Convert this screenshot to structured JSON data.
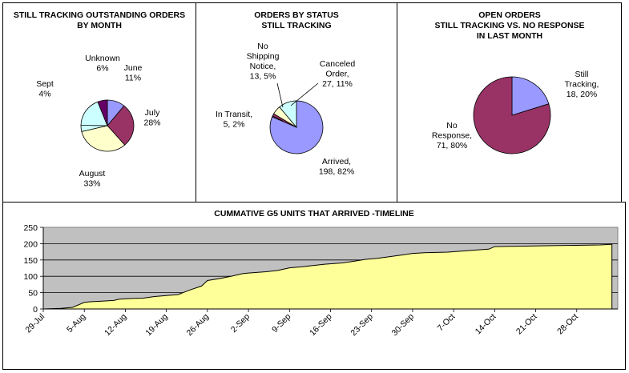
{
  "chart_data": [
    {
      "type": "pie",
      "title": "STILL TRACKING OUTSTANDING ORDERS BY MONTH",
      "title_lines": [
        "STILL TRACKING OUTSTANDING ORDERS",
        "BY MONTH"
      ],
      "slices": [
        {
          "name": "June",
          "value": 11,
          "label": [
            "June",
            "11%"
          ],
          "color": "#9999ff"
        },
        {
          "name": "July",
          "value": 28,
          "label": [
            "July",
            "28%"
          ],
          "color": "#993366"
        },
        {
          "name": "August",
          "value": 33,
          "label": [
            "August",
            "33%"
          ],
          "color": "#ffffcc"
        },
        {
          "name": "Sept",
          "value": 4,
          "label": [
            "Sept",
            "4%"
          ],
          "color": "#ccffff"
        },
        {
          "name": "Sept",
          "value": 19,
          "label": null,
          "color": "#ccffff"
        },
        {
          "name": "Unknown",
          "value": 6,
          "label": [
            "Unknown",
            "6%"
          ],
          "color": "#660066"
        }
      ]
    },
    {
      "type": "pie",
      "title": "ORDERS BY STATUS STILL TRACKING",
      "title_lines": [
        "ORDERS BY STATUS",
        "STILL TRACKING"
      ],
      "slices": [
        {
          "name": "Arrived",
          "value": 198,
          "label": [
            "Arrived,",
            "198, 82%"
          ],
          "color": "#9999ff"
        },
        {
          "name": "In Transit",
          "value": 5,
          "label": [
            "In Transit,",
            "5, 2%"
          ],
          "color": "#993366"
        },
        {
          "name": "No Shipping Notice",
          "value": 13,
          "label": [
            "No",
            "Shipping",
            "Notice,",
            "13, 5%"
          ],
          "color": "#ffffcc"
        },
        {
          "name": "Canceled Order",
          "value": 27,
          "label": [
            "Canceled",
            "Order,",
            "27, 11%"
          ],
          "color": "#ccffff"
        }
      ]
    },
    {
      "type": "pie",
      "title": "OPEN ORDERS STILL TRACKING VS. NO RESPONSE IN LAST MONTH",
      "title_lines": [
        "OPEN ORDERS",
        "STILL TRACKING VS. NO RESPONSE",
        "IN LAST MONTH"
      ],
      "slices": [
        {
          "name": "Still Tracking",
          "value": 18,
          "label": [
            "Still",
            "Tracking,",
            "18, 20%"
          ],
          "color": "#9999ff"
        },
        {
          "name": "No Response",
          "value": 71,
          "label": [
            "No",
            "Response,",
            "71, 80%"
          ],
          "color": "#993366"
        }
      ]
    },
    {
      "type": "area",
      "title": "CUMMATIVE G5 UNITS THAT ARRIVED -TIMELINE",
      "ylim": [
        0,
        250
      ],
      "yticks": [
        0,
        50,
        100,
        150,
        200,
        250
      ],
      "xlim": [
        0,
        98
      ],
      "xticks": [
        {
          "day": 0,
          "label": "29-Jul"
        },
        {
          "day": 7,
          "label": "5-Aug"
        },
        {
          "day": 14,
          "label": "12-Aug"
        },
        {
          "day": 21,
          "label": "19-Aug"
        },
        {
          "day": 28,
          "label": "26-Aug"
        },
        {
          "day": 35,
          "label": "2-Sep"
        },
        {
          "day": 42,
          "label": "9-Sep"
        },
        {
          "day": 49,
          "label": "16-Sep"
        },
        {
          "day": 56,
          "label": "23-Sep"
        },
        {
          "day": 63,
          "label": "30-Sep"
        },
        {
          "day": 70,
          "label": "7-Oct"
        },
        {
          "day": 77,
          "label": "14-Oct"
        },
        {
          "day": 84,
          "label": "21-Oct"
        },
        {
          "day": 91,
          "label": "28-Oct"
        }
      ],
      "series": [
        {
          "name": "Cumulative G5 units arrived",
          "fill": "#ffff99",
          "x": [
            0,
            3,
            5,
            7,
            8,
            10,
            12,
            13,
            15,
            17,
            19,
            21,
            23,
            25,
            27,
            28,
            30,
            32,
            34,
            35,
            38,
            40,
            42,
            44,
            46,
            48,
            51,
            53,
            55,
            57,
            59,
            61,
            63,
            65,
            67,
            69,
            72,
            74,
            76,
            77,
            80,
            84,
            88,
            92,
            95,
            97
          ],
          "y": [
            0,
            2,
            5,
            20,
            22,
            24,
            26,
            30,
            32,
            33,
            38,
            41,
            44,
            58,
            70,
            87,
            93,
            100,
            108,
            110,
            114,
            118,
            126,
            129,
            133,
            137,
            141,
            146,
            152,
            155,
            160,
            165,
            170,
            172,
            173,
            174,
            178,
            181,
            183,
            191,
            192,
            193,
            194,
            195,
            196,
            198
          ]
        }
      ]
    }
  ]
}
